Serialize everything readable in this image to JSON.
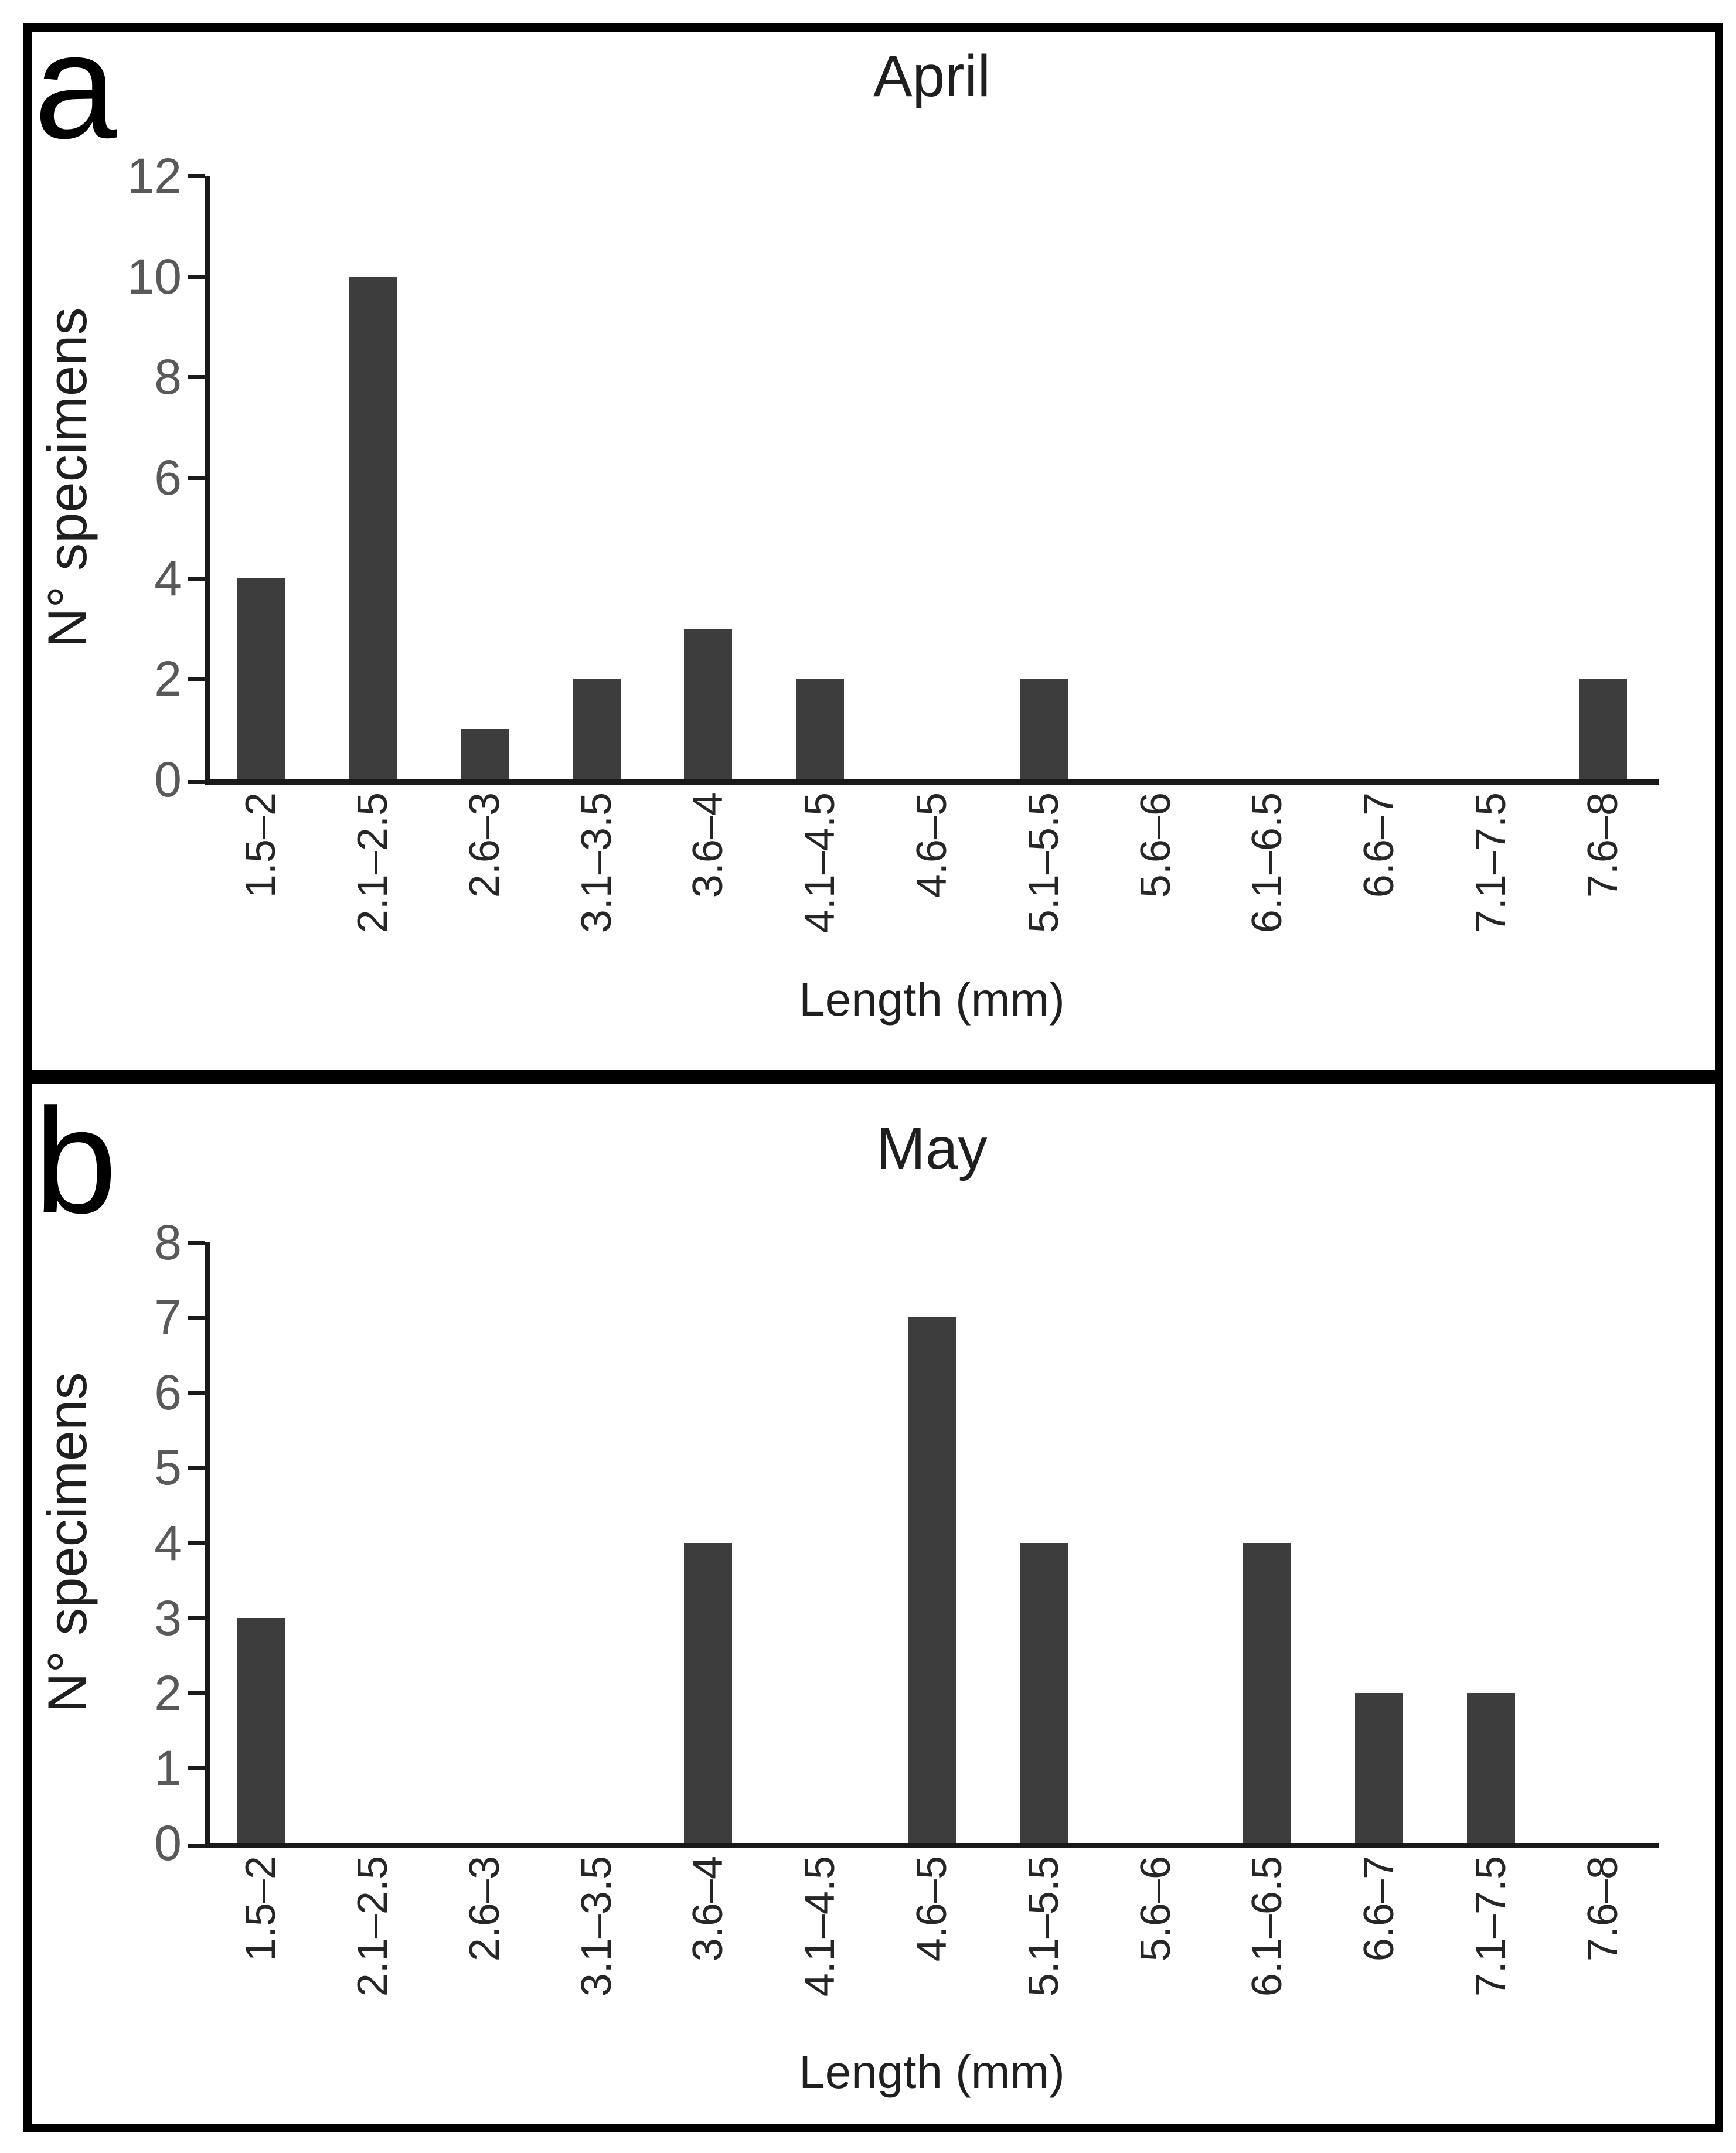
{
  "figure": {
    "background_color": "#ffffff",
    "border_color": "#000000",
    "bar_color": "#3d3d3d",
    "axis_color": "#1a1a1a",
    "ytick_label_color": "#595959",
    "text_color": "#1f1f1f"
  },
  "chart_data": [
    {
      "type": "bar",
      "panel_label": "a",
      "title": "April",
      "xlabel": "Length (mm)",
      "ylabel": "N° specimens",
      "categories": [
        "1.5–2",
        "2.1–2.5",
        "2.6–3",
        "3.1–3.5",
        "3.6–4",
        "4.1–4.5",
        "4.6–5",
        "5.1–5.5",
        "5.6–6",
        "6.1–6.5",
        "6.6–7",
        "7.1–7.5",
        "7.6–8"
      ],
      "values": [
        4,
        10,
        1,
        2,
        3,
        2,
        0,
        2,
        0,
        0,
        0,
        0,
        2
      ],
      "ylim": [
        0,
        12
      ],
      "yticks": [
        0,
        2,
        4,
        6,
        8,
        10,
        12
      ],
      "grid": false,
      "legend": null
    },
    {
      "type": "bar",
      "panel_label": "b",
      "title": "May",
      "xlabel": "Length (mm)",
      "ylabel": "N° specimens",
      "categories": [
        "1.5–2",
        "2.1–2.5",
        "2.6–3",
        "3.1–3.5",
        "3.6–4",
        "4.1–4.5",
        "4.6–5",
        "5.1–5.5",
        "5.6–6",
        "6.1–6.5",
        "6.6–7",
        "7.1–7.5",
        "7.6–8"
      ],
      "values": [
        3,
        0,
        0,
        0,
        4,
        0,
        7,
        4,
        0,
        4,
        2,
        2,
        0
      ],
      "ylim": [
        0,
        8
      ],
      "yticks": [
        0,
        1,
        2,
        3,
        4,
        5,
        6,
        7,
        8
      ],
      "grid": false,
      "legend": null
    }
  ]
}
